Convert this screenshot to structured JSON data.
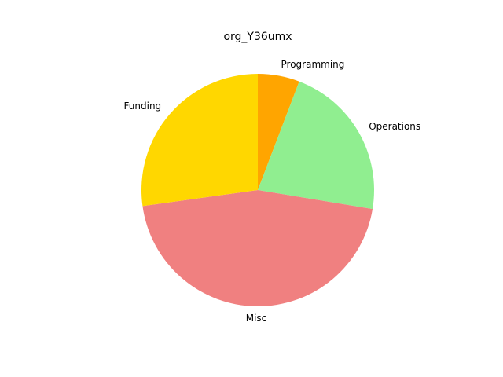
{
  "chart_data": {
    "type": "pie",
    "title": "org_Y36umx",
    "start_angle_deg": 90,
    "direction": "clockwise",
    "slices": [
      {
        "label": "Programming",
        "value": 5.8,
        "color": "#FFA500"
      },
      {
        "label": "Operations",
        "value": 21.8,
        "color": "#90EE90"
      },
      {
        "label": "Misc",
        "value": 45.2,
        "color": "#F08080"
      },
      {
        "label": "Funding",
        "value": 27.2,
        "color": "#FFD700"
      }
    ]
  }
}
